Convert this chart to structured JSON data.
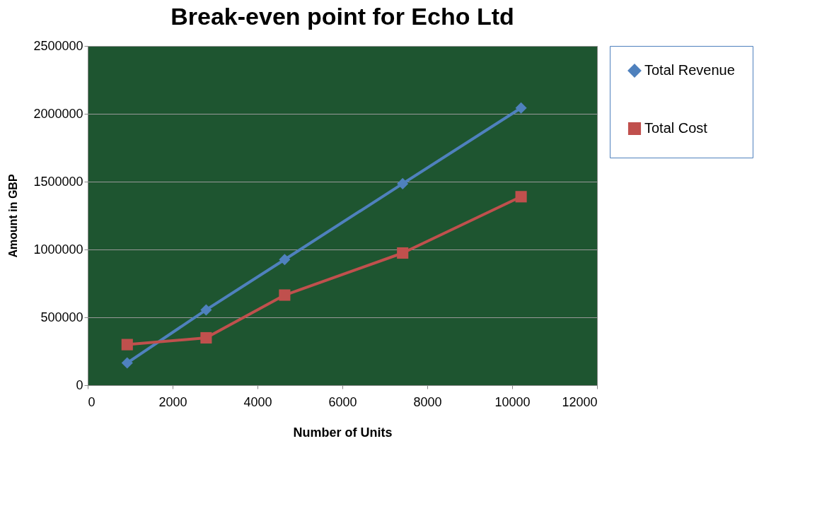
{
  "chart_data": {
    "type": "line",
    "title": "Break-even point for Echo Ltd",
    "xlabel": "Number of Units",
    "ylabel": "Amount in GBP",
    "x": [
      930,
      2790,
      4640,
      7420,
      10210
    ],
    "series": [
      {
        "name": "Total Revenue",
        "color": "#4f81bd",
        "marker": "diamond",
        "values": [
          164000,
          555000,
          926000,
          1485000,
          2043000
        ]
      },
      {
        "name": "Total Cost",
        "color": "#c0504d",
        "marker": "square",
        "values": [
          299000,
          349000,
          664000,
          974000,
          1389000
        ]
      }
    ],
    "xlim": [
      0,
      12000
    ],
    "xticks": [
      0,
      2000,
      4000,
      6000,
      8000,
      10000,
      12000
    ],
    "ylim": [
      0,
      2500000
    ],
    "yticks": [
      0,
      500000,
      1000000,
      1500000,
      2000000,
      2500000
    ],
    "grid": "y",
    "legend": "right",
    "line_style": "solid"
  }
}
